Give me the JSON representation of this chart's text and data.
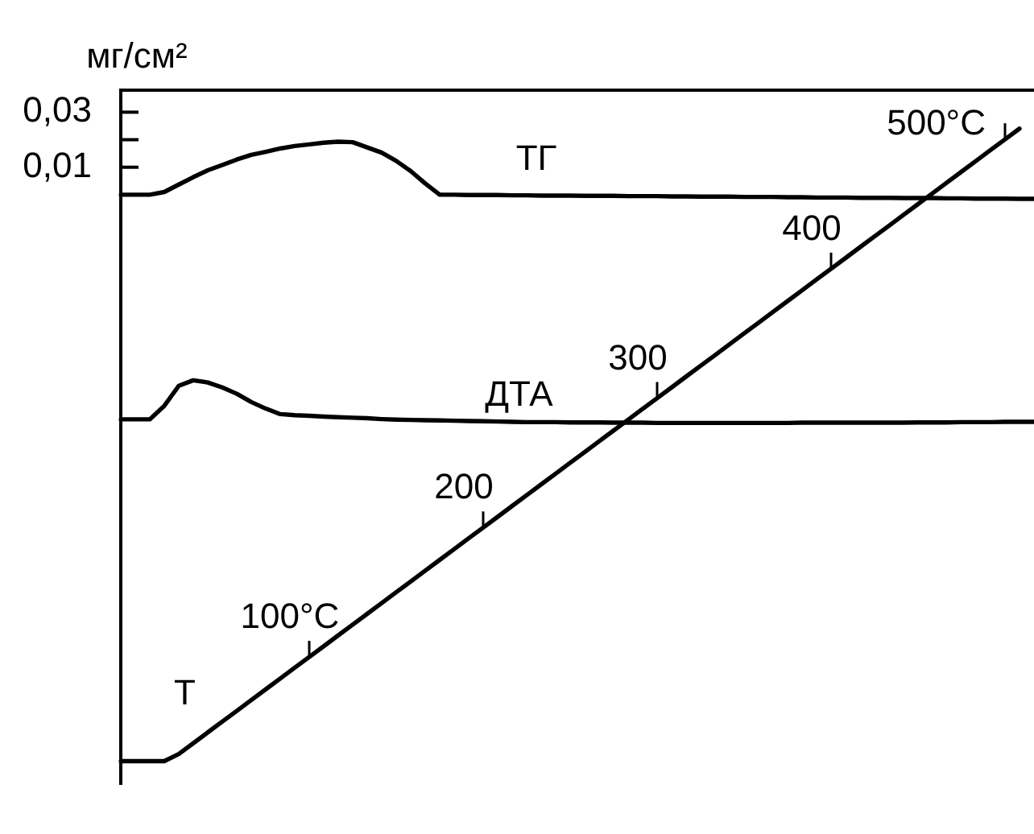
{
  "chart_data": {
    "type": "line",
    "ylabel": "мг/см²",
    "categories": [
      null,
      null,
      null,
      null,
      null,
      null,
      null,
      null,
      null,
      null,
      null,
      null,
      null,
      null,
      null,
      null,
      null,
      null,
      null,
      null,
      null,
      null,
      null,
      null,
      null,
      null,
      null,
      null,
      null,
      null,
      null,
      null,
      null,
      null,
      null,
      null,
      null,
      null,
      null,
      null,
      null,
      null,
      null,
      null,
      null,
      null,
      null,
      null,
      null,
      null,
      null,
      null,
      null,
      null,
      null,
      null,
      null,
      null,
      null,
      null,
      null,
      null,
      null,
      null
    ],
    "series": [
      {
        "name": "ТГ",
        "color": "#000000",
        "values": [
          0,
          0,
          0,
          0.001,
          0.0037,
          0.0064,
          0.0089,
          0.0108,
          0.0128,
          0.0145,
          0.0156,
          0.0168,
          0.0177,
          0.0183,
          0.0189,
          0.0193,
          0.0191,
          0.0172,
          0.0153,
          0.0123,
          0.0086,
          0.0041,
          0,
          0,
          -0.0001,
          -0.0001,
          -0.0001,
          -0.0002,
          -0.0002,
          -0.0003,
          -0.0003,
          -0.0003,
          -0.0004,
          -0.0004,
          -0.0004,
          -0.0005,
          -0.0005,
          -0.0005,
          -0.0006,
          -0.0006,
          -0.0007,
          -0.0007,
          -0.0007,
          -0.0008,
          -0.0008,
          -0.0008,
          -0.0009,
          -0.0009,
          -0.001,
          -0.001,
          -0.001,
          -0.0011,
          -0.0011,
          -0.0011,
          -0.0012,
          -0.0012,
          -0.0012,
          -0.0013,
          -0.0013,
          -0.0014,
          -0.0014,
          -0.0014,
          -0.0015,
          -0.0015
        ]
      },
      {
        "name": "ДТА",
        "color": "#000000",
        "values": [
          -0.0816,
          -0.0816,
          -0.0816,
          -0.0767,
          -0.0694,
          -0.0674,
          -0.0682,
          -0.07,
          -0.0723,
          -0.0753,
          -0.0777,
          -0.0797,
          -0.0801,
          -0.0803,
          -0.0806,
          -0.0808,
          -0.081,
          -0.0812,
          -0.0815,
          -0.0817,
          -0.0818,
          -0.0819,
          -0.082,
          -0.0821,
          -0.0822,
          -0.0823,
          -0.0824,
          -0.0825,
          -0.0826,
          -0.0826,
          -0.0826,
          -0.0827,
          -0.0827,
          -0.0827,
          -0.0828,
          -0.0828,
          -0.0828,
          -0.0829,
          -0.0829,
          -0.0829,
          -0.0829,
          -0.0829,
          -0.0829,
          -0.0829,
          -0.0829,
          -0.0829,
          -0.0829,
          -0.0828,
          -0.0828,
          -0.0828,
          -0.0828,
          -0.0828,
          -0.0828,
          -0.0828,
          -0.0828,
          -0.0827,
          -0.0827,
          -0.0827,
          -0.0826,
          -0.0826,
          -0.0826,
          -0.0825,
          -0.0825,
          -0.0825
        ]
      },
      {
        "name": "T",
        "color": "#000000",
        "axis": "y2",
        "values": [
          19.5,
          19.5,
          19.5,
          19.5,
          25,
          33.3,
          41.7,
          50,
          58.3,
          66.7,
          75,
          83.3,
          91.7,
          100,
          108.3,
          116.7,
          125,
          133.3,
          141.7,
          150,
          158.3,
          166.7,
          175,
          183.3,
          191.7,
          200,
          208.3,
          216.7,
          225,
          233.3,
          241.7,
          250,
          258.3,
          266.7,
          275,
          283.3,
          291.7,
          300,
          308.3,
          316.7,
          325,
          333.3,
          341.7,
          350,
          358.3,
          366.7,
          375,
          383.3,
          391.7,
          400,
          408.3,
          416.7,
          425,
          433.3,
          441.7,
          450,
          458.3,
          466.7,
          475,
          483.3,
          491.7,
          500,
          508.3,
          null
        ],
        "value_labels": [
          null,
          null,
          null,
          null,
          null,
          null,
          null,
          null,
          null,
          null,
          null,
          null,
          null,
          "100°C",
          null,
          null,
          null,
          null,
          null,
          null,
          null,
          null,
          null,
          null,
          null,
          "200",
          null,
          null,
          null,
          null,
          null,
          null,
          null,
          null,
          null,
          null,
          null,
          "300",
          null,
          null,
          null,
          null,
          null,
          null,
          null,
          null,
          null,
          null,
          null,
          "400",
          null,
          null,
          null,
          null,
          null,
          null,
          null,
          null,
          null,
          null,
          null,
          "500°C",
          null,
          null
        ]
      }
    ],
    "ylim": [
      -0.214,
      0.038
    ],
    "yticks": [
      {
        "value": 0.03,
        "label": "0,03"
      },
      {
        "value": 0.02,
        "label": null
      },
      {
        "value": 0.01,
        "label": "0,01"
      }
    ],
    "y2lim": [
      2,
      538
    ],
    "tick_labels": "y",
    "grid": false,
    "legend": false,
    "marker": "none",
    "line_style": "solid"
  }
}
